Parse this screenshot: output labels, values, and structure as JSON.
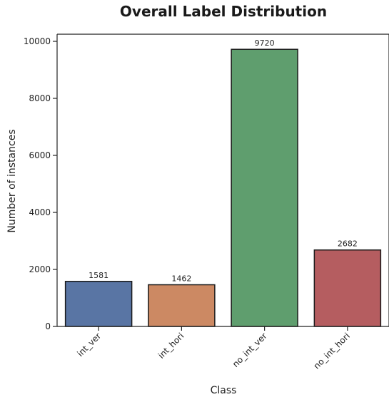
{
  "chart_data": {
    "type": "bar",
    "title": "Overall Label Distribution",
    "xlabel": "Class",
    "ylabel": "Number of instances",
    "categories": [
      "int_ver",
      "int_hori",
      "no_int_ver",
      "no_int_hori"
    ],
    "values": [
      1581,
      1462,
      9720,
      2682
    ],
    "data_labels": [
      "1581",
      "1462",
      "9720",
      "2682"
    ],
    "colors": [
      "#5975a4",
      "#cc8963",
      "#5f9e6e",
      "#b55d60"
    ],
    "ylim": [
      0,
      10250
    ],
    "yticks": [
      0,
      2000,
      4000,
      6000,
      8000,
      10000
    ],
    "grid": false,
    "legend": "none"
  }
}
